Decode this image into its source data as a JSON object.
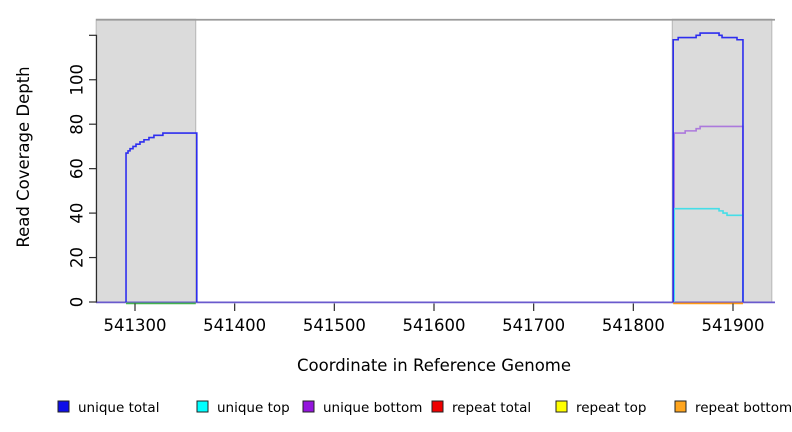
{
  "chart_data": {
    "type": "line",
    "title": "",
    "xlabel": "Coordinate in Reference Genome",
    "ylabel": "Read Coverage Depth",
    "xlim": [
      541261,
      541942
    ],
    "ylim": [
      0,
      128
    ],
    "x_ticks": [
      541300,
      541400,
      541500,
      541600,
      541700,
      541800,
      541900
    ],
    "y_ticks": [
      0,
      20,
      40,
      60,
      80,
      100,
      120
    ],
    "y_tick_labels": [
      "0",
      "20",
      "40",
      "60",
      "80",
      "100",
      ""
    ],
    "grid": false,
    "legend_position": "bottom",
    "background_regions": [
      {
        "name": "left-highlight-region",
        "x0": 541261,
        "x1": 541361,
        "fill": "#DBDBDB",
        "border": "#ABABAB"
      },
      {
        "name": "right-highlight-region",
        "x0": 541839,
        "x1": 541939,
        "fill": "#DBDBDB",
        "border": "#ABABAB"
      }
    ],
    "top_boundary_line": {
      "value": 127,
      "color": "#9A9A9A"
    },
    "zero_line": {
      "value": 0,
      "color": "#6A5ACD"
    },
    "series": [
      {
        "name": "unique total",
        "color": "#2E2EEF",
        "legend_fill": "#0F0FE8",
        "segments": [
          [
            [
              541291,
              0
            ],
            [
              541291,
              67
            ],
            [
              541293,
              67
            ],
            [
              541293,
              68
            ],
            [
              541295,
              68
            ],
            [
              541295,
              69
            ],
            [
              541298,
              69
            ],
            [
              541298,
              70
            ],
            [
              541301,
              70
            ],
            [
              541301,
              71
            ],
            [
              541305,
              71
            ],
            [
              541305,
              72
            ],
            [
              541309,
              72
            ],
            [
              541309,
              73
            ],
            [
              541314,
              73
            ],
            [
              541314,
              74
            ],
            [
              541319,
              74
            ],
            [
              541319,
              75
            ],
            [
              541328,
              75
            ],
            [
              541328,
              76
            ],
            [
              541362,
              76
            ],
            [
              541362,
              0
            ]
          ],
          [
            [
              541840,
              0
            ],
            [
              541840,
              118
            ],
            [
              541845,
              118
            ],
            [
              541845,
              119
            ],
            [
              541863,
              119
            ],
            [
              541863,
              120
            ],
            [
              541867,
              120
            ],
            [
              541867,
              121
            ],
            [
              541886,
              121
            ],
            [
              541886,
              120
            ],
            [
              541889,
              120
            ],
            [
              541889,
              119
            ],
            [
              541893,
              119
            ],
            [
              541904,
              119
            ],
            [
              541904,
              118
            ],
            [
              541910,
              118
            ],
            [
              541910,
              0
            ]
          ]
        ]
      },
      {
        "name": "unique top",
        "color": "#45DEE8",
        "legend_fill": "#00FFFF",
        "segments": [
          [
            [
              541841,
              0
            ],
            [
              541841,
              42
            ],
            [
              541886,
              42
            ],
            [
              541886,
              41
            ],
            [
              541890,
              41
            ],
            [
              541890,
              40
            ],
            [
              541894,
              40
            ],
            [
              541894,
              39
            ],
            [
              541910,
              39
            ],
            [
              541910,
              0
            ]
          ]
        ]
      },
      {
        "name": "unique bottom",
        "color": "#AC79DC",
        "legend_fill": "#9415DD",
        "segments": [
          [
            [
              541841,
              0
            ],
            [
              541841,
              76
            ],
            [
              541852,
              76
            ],
            [
              541852,
              77
            ],
            [
              541863,
              77
            ],
            [
              541863,
              78
            ],
            [
              541867,
              78
            ],
            [
              541867,
              79
            ],
            [
              541910,
              79
            ],
            [
              541910,
              0
            ]
          ]
        ]
      },
      {
        "name": "repeat total",
        "color": "#EE0000",
        "legend_fill": "#EE0000",
        "segments": []
      },
      {
        "name": "repeat top",
        "color": "#FFFF00",
        "legend_fill": "#FFFF00",
        "segments": []
      },
      {
        "name": "repeat bottom",
        "color": "#FF9912",
        "legend_fill": "#FFA51E",
        "pixel_dy": 1.4,
        "segments": [
          [
            [
              541840,
              0
            ],
            [
              541910,
              0
            ]
          ]
        ]
      }
    ],
    "extra_segments": [
      {
        "name": "green-zero-marker",
        "color": "#44B24E",
        "pixel_dy": 1.4,
        "points": [
          [
            541291,
            0
          ],
          [
            541361,
            0
          ]
        ]
      }
    ]
  }
}
